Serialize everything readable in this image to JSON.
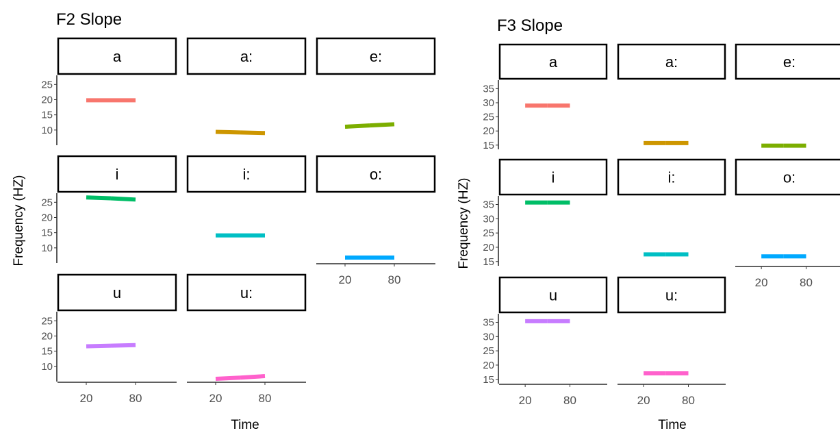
{
  "chart_data": [
    {
      "type": "line",
      "title": "F2 Slope",
      "xlabel": "Time",
      "ylabel": "Frequency (HZ)",
      "facets": [
        "a",
        "a:",
        "e:",
        "i",
        "i:",
        "o:",
        "u",
        "u:"
      ],
      "xticks": [
        20,
        80
      ],
      "xlim": [
        -15,
        130
      ],
      "yticks": [
        10,
        15,
        20,
        25
      ],
      "ylim": [
        5,
        28
      ],
      "series": [
        {
          "facet": "a",
          "color": "#F8766D",
          "x": [
            20,
            50,
            80
          ],
          "y": [
            19.8,
            19.8,
            19.8
          ]
        },
        {
          "facet": "a:",
          "color": "#CD9600",
          "x": [
            20,
            50,
            80
          ],
          "y": [
            9.4,
            9.2,
            9.0
          ]
        },
        {
          "facet": "e:",
          "color": "#7CAE00",
          "x": [
            20,
            50,
            80
          ],
          "y": [
            11.1,
            11.5,
            11.9
          ]
        },
        {
          "facet": "i",
          "color": "#00BE67",
          "x": [
            20,
            50,
            80
          ],
          "y": [
            26.6,
            26.3,
            25.9
          ]
        },
        {
          "facet": "i:",
          "color": "#00BFC4",
          "x": [
            20,
            50,
            80
          ],
          "y": [
            14.1,
            14.1,
            14.1
          ]
        },
        {
          "facet": "o:",
          "color": "#00A9FF",
          "x": [
            20,
            50,
            80
          ],
          "y": [
            6.8,
            6.8,
            6.8
          ]
        },
        {
          "facet": "u",
          "color": "#C77CFF",
          "x": [
            20,
            50,
            80
          ],
          "y": [
            16.6,
            16.8,
            17.0
          ]
        },
        {
          "facet": "u:",
          "color": "#FF61CC",
          "x": [
            20,
            50,
            80
          ],
          "y": [
            5.9,
            6.3,
            6.8
          ]
        }
      ]
    },
    {
      "type": "line",
      "title": "F3 Slope",
      "xlabel": "Time",
      "ylabel": "Frequency (HZ)",
      "facets": [
        "a",
        "a:",
        "e:",
        "i",
        "i:",
        "o:",
        "u",
        "u:"
      ],
      "xticks": [
        20,
        80
      ],
      "xlim": [
        -15,
        130
      ],
      "yticks": [
        15,
        20,
        25,
        30,
        35
      ],
      "ylim": [
        13.5,
        38
      ],
      "series": [
        {
          "facet": "a",
          "color": "#F8766D",
          "x": [
            20,
            50,
            80
          ],
          "y": [
            29.0,
            29.0,
            29.0
          ]
        },
        {
          "facet": "a:",
          "color": "#CD9600",
          "x": [
            20,
            50,
            80
          ],
          "y": [
            15.7,
            15.7,
            15.7
          ]
        },
        {
          "facet": "e:",
          "color": "#7CAE00",
          "x": [
            20,
            50,
            80
          ],
          "y": [
            14.8,
            14.8,
            14.8
          ]
        },
        {
          "facet": "i",
          "color": "#00BE67",
          "x": [
            20,
            50,
            80
          ],
          "y": [
            35.7,
            35.7,
            35.7
          ]
        },
        {
          "facet": "i:",
          "color": "#00BFC4",
          "x": [
            20,
            50,
            80
          ],
          "y": [
            17.5,
            17.5,
            17.5
          ]
        },
        {
          "facet": "o:",
          "color": "#00A9FF",
          "x": [
            20,
            50,
            80
          ],
          "y": [
            16.8,
            16.8,
            16.8
          ]
        },
        {
          "facet": "u",
          "color": "#C77CFF",
          "x": [
            20,
            50,
            80
          ],
          "y": [
            35.4,
            35.4,
            35.4
          ]
        },
        {
          "facet": "u:",
          "color": "#FF61CC",
          "x": [
            20,
            50,
            80
          ],
          "y": [
            17.1,
            17.1,
            17.1
          ]
        }
      ]
    }
  ]
}
